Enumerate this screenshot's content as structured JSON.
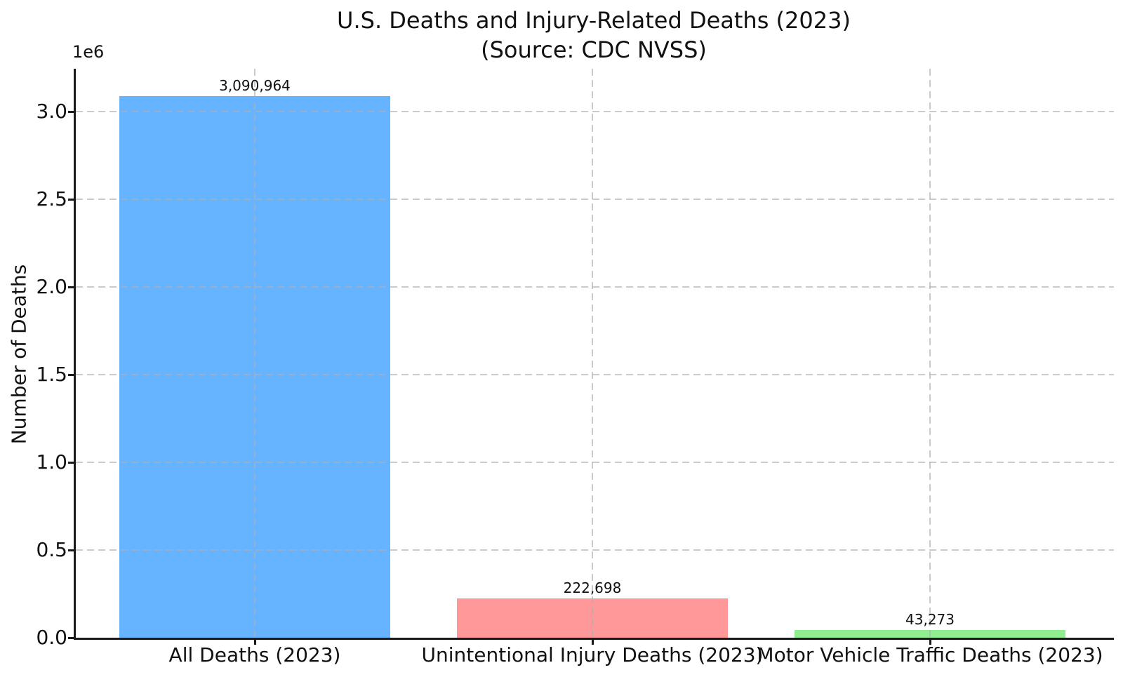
{
  "chart_data": {
    "type": "bar",
    "title": "U.S. Deaths and Injury-Related Deaths (2023)",
    "subtitle": "(Source: CDC NVSS)",
    "xlabel": "",
    "ylabel": "Number of Deaths",
    "y_offset_label": "1e6",
    "categories": [
      "All Deaths (2023)",
      "Unintentional Injury Deaths (2023)",
      "Motor Vehicle Traffic Deaths (2023)"
    ],
    "values": [
      3090964,
      222698,
      43273
    ],
    "value_labels": [
      "3,090,964",
      "222,698",
      "43,273"
    ],
    "bar_colors": [
      "#66b3ff",
      "#ff9999",
      "#90ee90"
    ],
    "ylim": [
      0,
      3245512
    ],
    "yticks": {
      "values": [
        0,
        500000,
        1000000,
        1500000,
        2000000,
        2500000,
        3000000
      ],
      "labels": [
        "0.0",
        "0.5",
        "1.0",
        "1.5",
        "2.0",
        "2.5",
        "3.0"
      ]
    },
    "grid": {
      "style": "dashed",
      "axes": "both",
      "color": "#c9c9c9"
    },
    "legend": null,
    "text_color": "#111111",
    "background_color": "#ffffff"
  }
}
